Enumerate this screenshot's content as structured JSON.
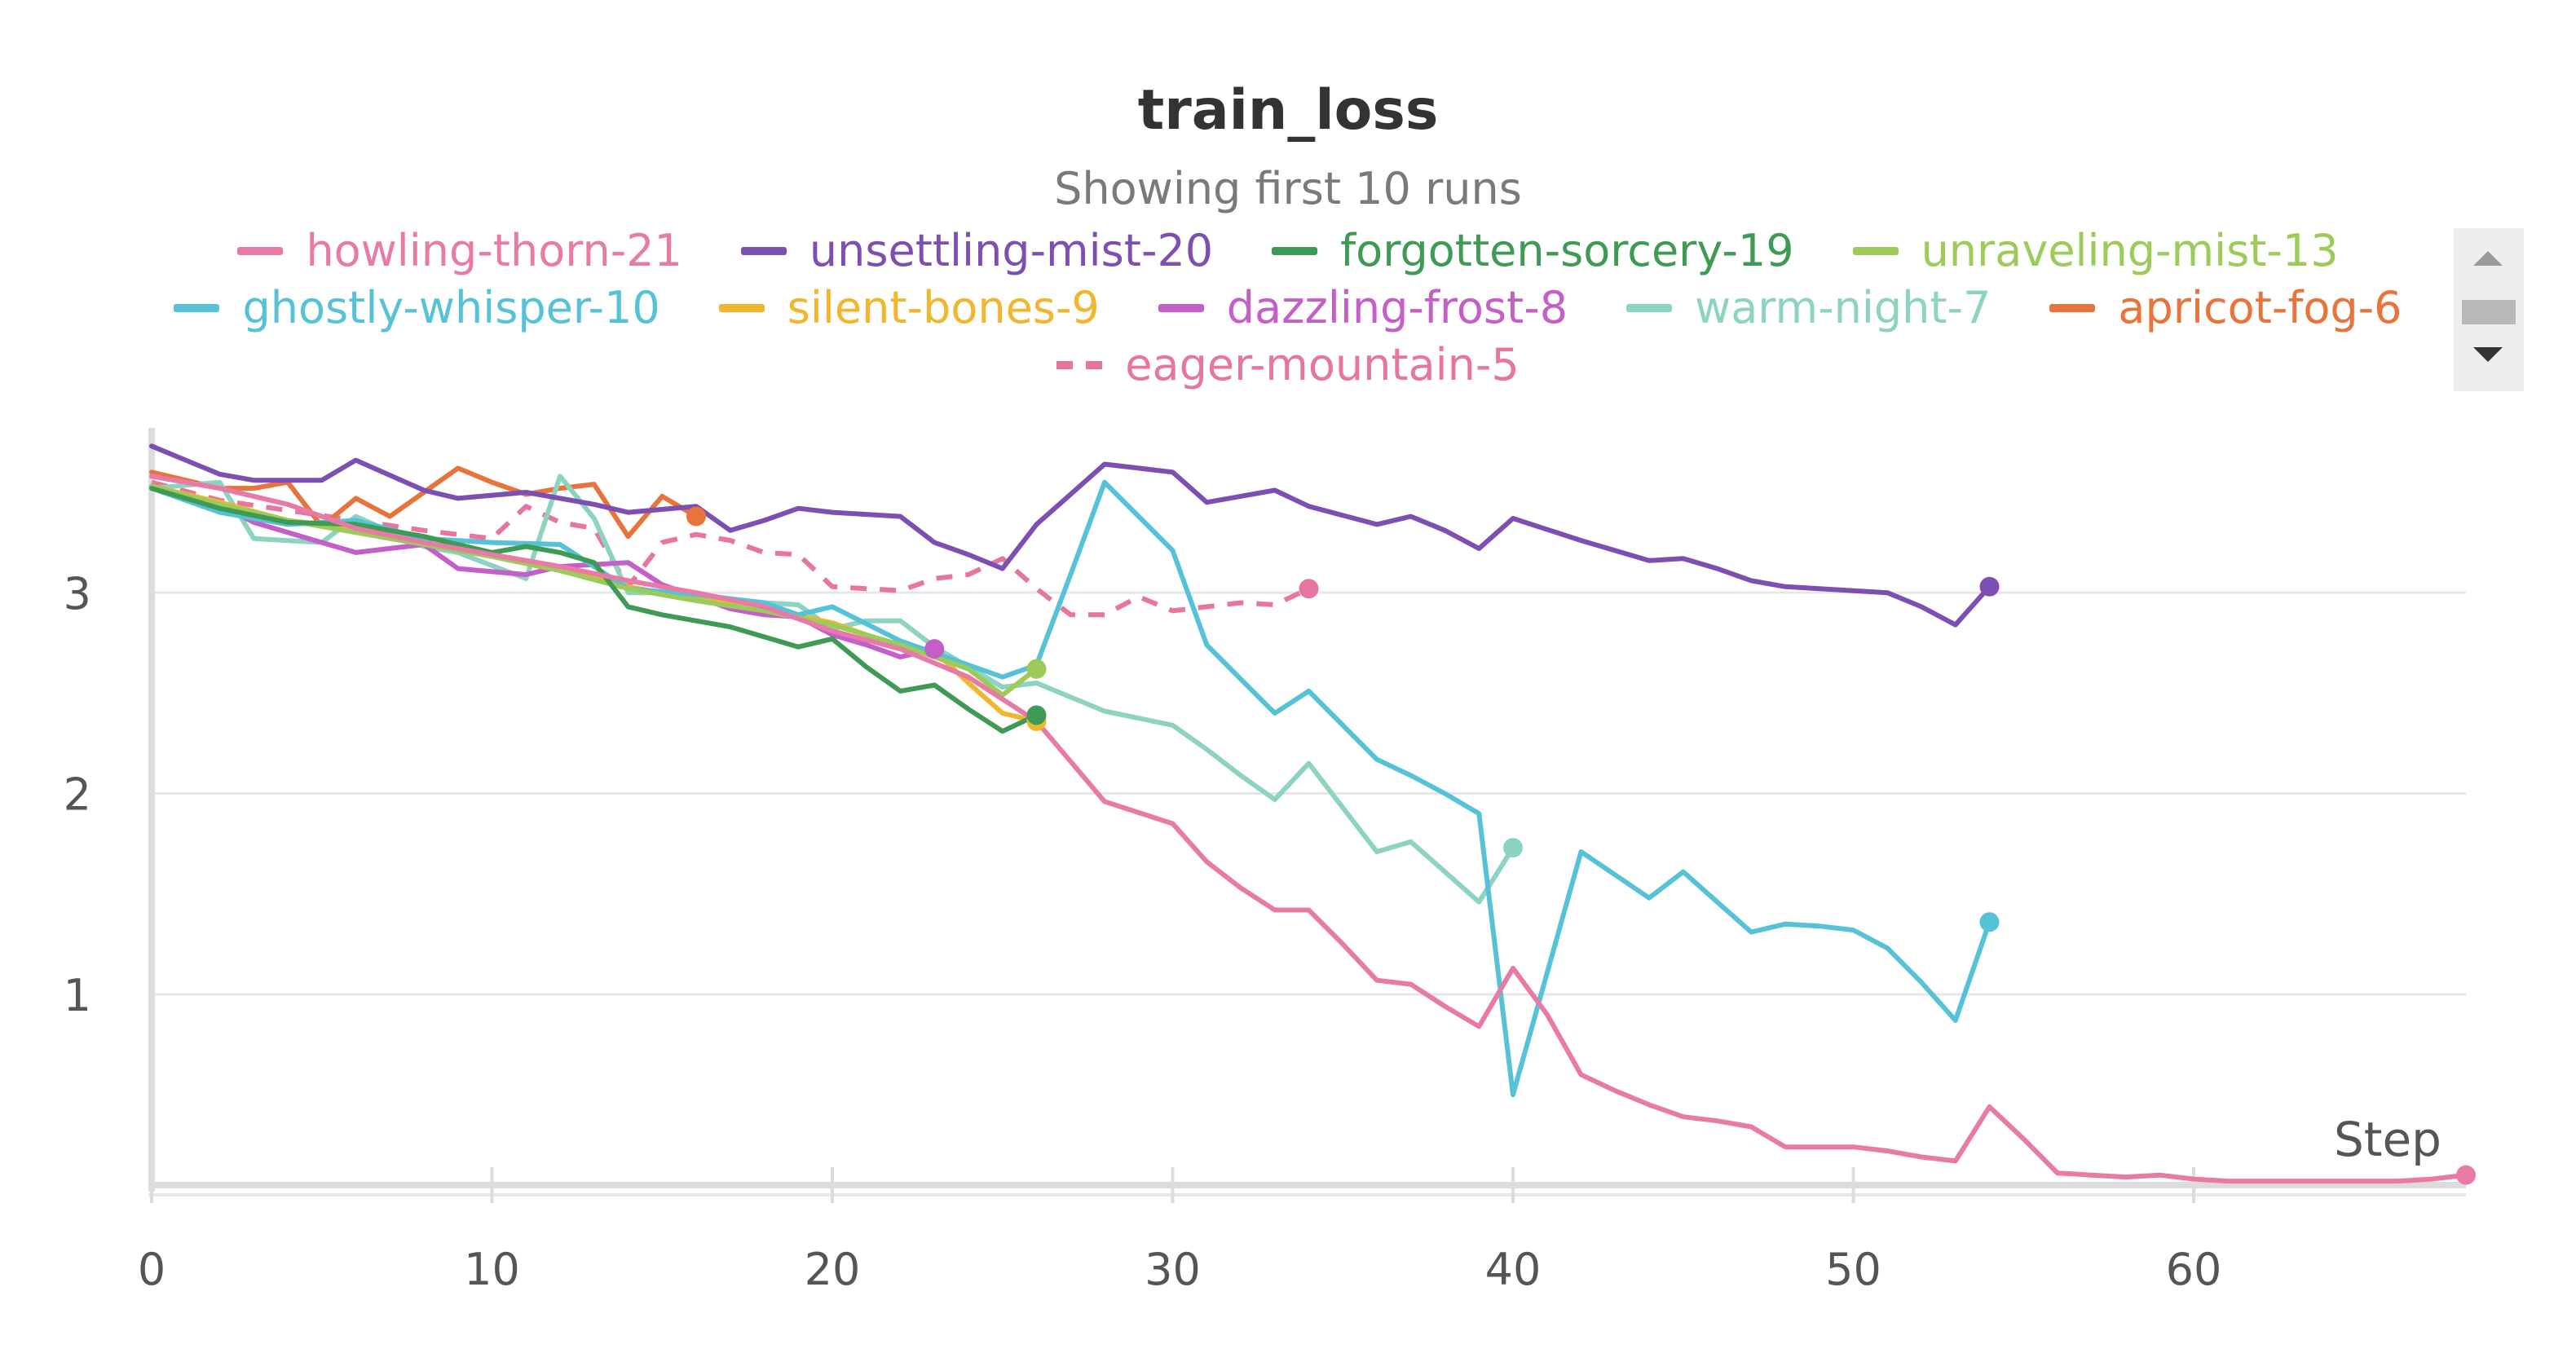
{
  "chart_data": {
    "type": "line",
    "title": "train_loss",
    "subtitle": "Showing first 10 runs",
    "xlabel": "Step",
    "ylabel": "",
    "xlim": [
      0,
      68
    ],
    "ylim": [
      0.05,
      3.78
    ],
    "xticks": [
      "0",
      "10",
      "20",
      "30",
      "40",
      "50",
      "60"
    ],
    "yticks": [
      "1",
      "2",
      "3"
    ],
    "grid": true,
    "legend_position": "top",
    "series": [
      {
        "name": "howling-thorn-21",
        "color": "#e87ba6",
        "dashed": false,
        "x": [
          0,
          2,
          4,
          6,
          8,
          10,
          12,
          14,
          16,
          18,
          20,
          22,
          24,
          26,
          28,
          30,
          31,
          32,
          33,
          34,
          35,
          36,
          37,
          38,
          39,
          40,
          41,
          42,
          43,
          44,
          45,
          46,
          47,
          48,
          49,
          50,
          51,
          52,
          53,
          54,
          55,
          56,
          57,
          58,
          59,
          60,
          61,
          62,
          63,
          64,
          65,
          66,
          67,
          68
        ],
        "y": [
          3.58,
          3.52,
          3.44,
          3.32,
          3.25,
          3.19,
          3.13,
          3.06,
          3.0,
          2.93,
          2.81,
          2.72,
          2.58,
          2.36,
          1.96,
          1.85,
          1.66,
          1.53,
          1.42,
          1.42,
          1.25,
          1.07,
          1.05,
          0.94,
          0.84,
          1.13,
          0.9,
          0.6,
          0.52,
          0.45,
          0.39,
          0.37,
          0.34,
          0.24,
          0.24,
          0.24,
          0.22,
          0.19,
          0.17,
          0.44,
          0.28,
          0.11,
          0.1,
          0.09,
          0.1,
          0.08,
          0.07,
          0.07,
          0.07,
          0.07,
          0.07,
          0.07,
          0.08,
          0.1
        ],
        "end_marker": true
      },
      {
        "name": "unsettling-mist-20",
        "color": "#7d4fb2",
        "dashed": false,
        "x": [
          0,
          2,
          3,
          4,
          5,
          6,
          8,
          9,
          11,
          13,
          14,
          16,
          17,
          18,
          19,
          20,
          21,
          22,
          23,
          24,
          25,
          26,
          27,
          28,
          29,
          30,
          31,
          32,
          33,
          34,
          36,
          37,
          38,
          39,
          40,
          42,
          44,
          45,
          46,
          47,
          48,
          50,
          51,
          52,
          53,
          54
        ],
        "y": [
          3.73,
          3.59,
          3.56,
          3.56,
          3.56,
          3.66,
          3.51,
          3.47,
          3.5,
          3.44,
          3.4,
          3.43,
          3.31,
          3.36,
          3.42,
          3.4,
          3.39,
          3.38,
          3.25,
          3.19,
          3.12,
          3.34,
          3.49,
          3.64,
          3.62,
          3.6,
          3.45,
          3.48,
          3.51,
          3.43,
          3.34,
          3.38,
          3.31,
          3.22,
          3.37,
          3.26,
          3.16,
          3.17,
          3.12,
          3.06,
          3.03,
          3.01,
          3.0,
          2.93,
          2.84,
          3.03
        ],
        "end_marker": true
      },
      {
        "name": "forgotten-sorcery-19",
        "color": "#3f9a55",
        "dashed": false,
        "x": [
          0,
          2,
          4,
          6,
          8,
          10,
          11,
          12,
          13,
          14,
          15,
          16,
          17,
          18,
          19,
          20,
          21,
          22,
          23,
          24,
          25,
          26
        ],
        "y": [
          3.52,
          3.42,
          3.35,
          3.34,
          3.28,
          3.2,
          3.23,
          3.2,
          3.15,
          2.93,
          2.89,
          2.86,
          2.83,
          2.78,
          2.73,
          2.77,
          2.63,
          2.51,
          2.54,
          2.42,
          2.31,
          2.39
        ],
        "end_marker": true
      },
      {
        "name": "unraveling-mist-13",
        "color": "#9ccb5a",
        "dashed": false,
        "x": [
          0,
          2,
          4,
          6,
          8,
          10,
          12,
          14,
          16,
          18,
          20,
          22,
          24,
          25,
          26
        ],
        "y": [
          3.53,
          3.44,
          3.36,
          3.3,
          3.24,
          3.18,
          3.11,
          3.02,
          2.96,
          2.91,
          2.84,
          2.74,
          2.62,
          2.49,
          2.62
        ],
        "end_marker": true
      },
      {
        "name": "ghostly-whisper-10",
        "color": "#56c2d8",
        "dashed": false,
        "x": [
          0,
          2,
          4,
          6,
          8,
          10,
          12,
          14,
          16,
          18,
          19,
          20,
          22,
          24,
          25,
          26,
          27,
          28,
          29,
          30,
          31,
          32,
          33,
          34,
          35,
          36,
          37,
          38,
          39,
          40,
          42,
          44,
          45,
          46,
          47,
          48,
          49,
          50,
          51,
          52,
          53,
          54
        ],
        "y": [
          3.52,
          3.4,
          3.34,
          3.36,
          3.27,
          3.25,
          3.24,
          3.02,
          2.99,
          2.95,
          2.89,
          2.93,
          2.76,
          2.64,
          2.58,
          2.64,
          3.09,
          3.55,
          3.38,
          3.21,
          2.74,
          2.57,
          2.4,
          2.51,
          2.34,
          2.17,
          2.09,
          2.0,
          1.9,
          0.5,
          1.71,
          1.48,
          1.61,
          1.46,
          1.31,
          1.35,
          1.34,
          1.32,
          1.23,
          1.06,
          0.87,
          1.36
        ],
        "end_marker": true
      },
      {
        "name": "silent-bones-9",
        "color": "#f0b62e",
        "dashed": false,
        "x": [
          0,
          2,
          4,
          6,
          8,
          10,
          12,
          14,
          16,
          18,
          20,
          22,
          23,
          24,
          25,
          26
        ],
        "y": [
          3.53,
          3.45,
          3.36,
          3.32,
          3.25,
          3.19,
          3.13,
          3.03,
          2.97,
          2.92,
          2.85,
          2.73,
          2.71,
          2.55,
          2.4,
          2.36
        ],
        "end_marker": true
      },
      {
        "name": "dazzling-frost-8",
        "color": "#c45ec8",
        "dashed": false,
        "x": [
          0,
          2,
          3,
          5,
          6,
          8,
          9,
          11,
          12,
          14,
          15,
          17,
          18,
          19,
          20,
          21,
          22,
          23
        ],
        "y": [
          3.53,
          3.44,
          3.35,
          3.25,
          3.2,
          3.24,
          3.12,
          3.09,
          3.13,
          3.15,
          3.04,
          2.92,
          2.89,
          2.88,
          2.79,
          2.74,
          2.68,
          2.72
        ],
        "end_marker": true
      },
      {
        "name": "warm-night-7",
        "color": "#8dd3c1",
        "dashed": false,
        "x": [
          0,
          2,
          3,
          5,
          6,
          8,
          9,
          11,
          12,
          13,
          14,
          15,
          16,
          17,
          18,
          19,
          20,
          21,
          22,
          23,
          25,
          26,
          28,
          30,
          31,
          32,
          33,
          34,
          35,
          36,
          37,
          38,
          39,
          40
        ],
        "y": [
          3.52,
          3.55,
          3.27,
          3.25,
          3.38,
          3.23,
          3.2,
          3.07,
          3.58,
          3.37,
          3.0,
          3.0,
          2.98,
          2.95,
          2.95,
          2.94,
          2.82,
          2.86,
          2.86,
          2.73,
          2.53,
          2.55,
          2.41,
          2.34,
          2.22,
          2.09,
          1.97,
          2.15,
          1.93,
          1.71,
          1.76,
          1.61,
          1.46,
          1.73
        ],
        "end_marker": true
      },
      {
        "name": "apricot-fog-6",
        "color": "#e8743b",
        "dashed": false,
        "x": [
          0,
          1,
          2,
          3,
          4,
          5,
          6,
          7,
          8,
          9,
          10,
          11,
          12,
          13,
          14,
          15,
          16
        ],
        "y": [
          3.6,
          3.56,
          3.52,
          3.52,
          3.55,
          3.33,
          3.47,
          3.38,
          3.5,
          3.62,
          3.55,
          3.49,
          3.52,
          3.54,
          3.28,
          3.48,
          3.38
        ],
        "end_marker": true
      },
      {
        "name": "eager-mountain-5",
        "color": "#e7759f",
        "dashed": true,
        "x": [
          0,
          2,
          4,
          6,
          8,
          10,
          11,
          12,
          13,
          14,
          15,
          16,
          17,
          18,
          19,
          20,
          21,
          22,
          23,
          24,
          25,
          26,
          27,
          28,
          29,
          30,
          31,
          32,
          33,
          34
        ],
        "y": [
          3.55,
          3.46,
          3.41,
          3.36,
          3.31,
          3.27,
          3.43,
          3.35,
          3.32,
          3.03,
          3.25,
          3.29,
          3.26,
          3.2,
          3.19,
          3.03,
          3.02,
          3.01,
          3.07,
          3.09,
          3.17,
          3.02,
          2.89,
          2.89,
          2.98,
          2.91,
          2.93,
          2.95,
          2.94,
          3.02
        ],
        "end_marker": true
      }
    ]
  }
}
